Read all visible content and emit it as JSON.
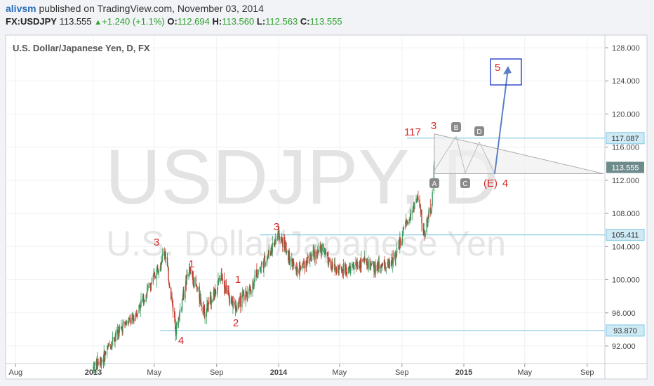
{
  "header": {
    "user": "alivsm",
    "published_text": "published on TradingView.com, November 03, 2014",
    "symbol": "FX:USDJPY",
    "last": "113.555",
    "change": "+1.240 (+1.1%)",
    "o_label": "O:",
    "o_val": "112.694",
    "h_label": "H:",
    "h_val": "113.560",
    "l_label": "L:",
    "l_val": "112.563",
    "c_label": "C:",
    "c_val": "113.555"
  },
  "chart_data": {
    "type": "candlestick",
    "title": "U.S. Dollar/Japanese Yen, D, FX",
    "watermark_symbol": "USDJPY, D",
    "watermark_name": "U.S. Dollar/Japanese Yen",
    "x_ticks": [
      "Aug",
      "2013",
      "May",
      "Sep",
      "2014",
      "May",
      "Sep",
      "2015",
      "May",
      "Sep"
    ],
    "x_ticks_bold": [
      "2013",
      "2014",
      "2015"
    ],
    "y_ticks": [
      "92.000",
      "96.000",
      "100.000",
      "104.000",
      "108.000",
      "112.000",
      "116.000",
      "120.000",
      "124.000",
      "128.000"
    ],
    "ylim": [
      90,
      130
    ],
    "price_path": [
      [
        "2013-01-01",
        89.5
      ],
      [
        "2013-01-20",
        90.5
      ],
      [
        "2013-02-10",
        93.0
      ],
      [
        "2013-03-01",
        94.5
      ],
      [
        "2013-03-20",
        95.2
      ],
      [
        "2013-04-05",
        97.2
      ],
      [
        "2013-04-25",
        99.5
      ],
      [
        "2013-05-08",
        101.5
      ],
      [
        "2013-05-22",
        103.4
      ],
      [
        "2013-06-06",
        97.0
      ],
      [
        "2013-06-13",
        93.9
      ],
      [
        "2013-06-25",
        97.5
      ],
      [
        "2013-07-08",
        101.2
      ],
      [
        "2013-07-20",
        99.5
      ],
      [
        "2013-08-08",
        96.1
      ],
      [
        "2013-08-20",
        97.5
      ],
      [
        "2013-09-11",
        100.6
      ],
      [
        "2013-09-25",
        98.0
      ],
      [
        "2013-10-08",
        96.6
      ],
      [
        "2013-10-25",
        98.0
      ],
      [
        "2013-11-08",
        99.0
      ],
      [
        "2013-11-20",
        101.0
      ],
      [
        "2013-12-10",
        102.8
      ],
      [
        "2013-12-31",
        105.4
      ],
      [
        "2014-01-10",
        104.5
      ],
      [
        "2014-02-04",
        101.0
      ],
      [
        "2014-03-01",
        102.5
      ],
      [
        "2014-04-01",
        103.8
      ],
      [
        "2014-04-15",
        101.5
      ],
      [
        "2014-05-20",
        101.2
      ],
      [
        "2014-06-15",
        102.2
      ],
      [
        "2014-07-10",
        101.3
      ],
      [
        "2014-07-25",
        101.8
      ],
      [
        "2014-08-08",
        101.6
      ],
      [
        "2014-08-25",
        104.0
      ],
      [
        "2014-09-10",
        106.7
      ],
      [
        "2014-10-01",
        110.0
      ],
      [
        "2014-10-08",
        108.0
      ],
      [
        "2014-10-15",
        105.4
      ],
      [
        "2014-10-22",
        107.5
      ],
      [
        "2014-10-30",
        109.0
      ],
      [
        "2014-11-03",
        113.555
      ]
    ],
    "h_lines": [
      {
        "label": "117.087",
        "value": 117.087
      },
      {
        "label": "105.411",
        "value": 105.411
      },
      {
        "label": "93.870",
        "value": 93.87
      }
    ],
    "current_price": {
      "label": "113.555",
      "value": 113.555
    },
    "wave_labels": [
      "3",
      "1",
      "1",
      "2",
      "4",
      "3",
      "117",
      "3",
      "(E)",
      "4",
      "5"
    ],
    "pattern_labels": [
      "A",
      "B",
      "C",
      "D"
    ],
    "colors": {
      "bull": "#3c9a5f",
      "bear": "#c0392b",
      "wave_label": "#d62728",
      "h_line": "#7ec8e3",
      "arrow": "#5b7fc4",
      "box": "#1a2fc9",
      "price_tag": "#6e8b8c"
    }
  }
}
